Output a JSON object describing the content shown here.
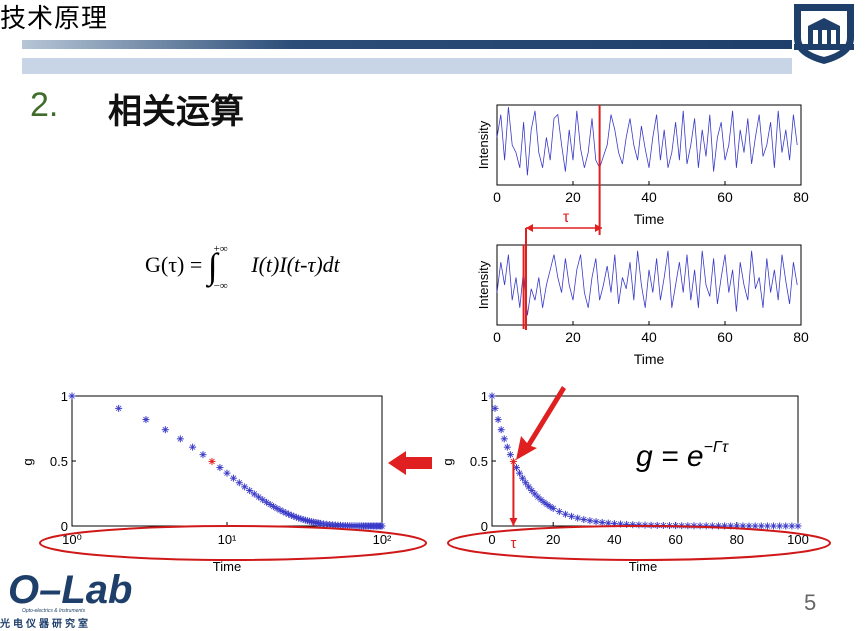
{
  "header": {
    "title": "技术原理"
  },
  "section": {
    "number": "2.",
    "title": "相关运算"
  },
  "formula": {
    "text": "G(τ) = ∫₋∞⁺∞ I(t)I(t-τ)dt",
    "lhs": "G(τ) =",
    "integral": "∫",
    "upper": "+∞",
    "lower": "−∞",
    "integrand": "I(t)I(t-τ)dt"
  },
  "slide": {
    "page_number": "5"
  },
  "logo": {
    "main": "O–Lab",
    "sub": "Opto-electrics & Instruments",
    "chinese": "光电仪器研究室"
  },
  "annotations": {
    "tau_label": "τ",
    "decay_formula": "g = e^(−Γτ)"
  },
  "colors": {
    "accent": "#e02020",
    "series": "#3a3ac8",
    "header_dark": "#1f3f6b",
    "section_num": "#3f6c2a"
  },
  "chart_data": [
    {
      "type": "line",
      "xlabel": "Time",
      "ylabel": "Intensity",
      "xlim": [
        0,
        80
      ],
      "xticks": [
        "0",
        "20",
        "40",
        "60",
        "80"
      ],
      "marker_x": 27,
      "series": [
        {
          "values": [
            0.6,
            0.9,
            0.3,
            1.0,
            0.5,
            0.4,
            0.2,
            0.8,
            0.1,
            0.7,
            0.95,
            0.4,
            0.2,
            0.6,
            0.3,
            0.85,
            0.9,
            0.5,
            0.15,
            0.7,
            0.3,
            0.95,
            0.45,
            0.2,
            0.4,
            0.85,
            0.3,
            0.2,
            0.35,
            0.5,
            0.9,
            0.7,
            0.4,
            0.25,
            0.6,
            0.85,
            0.5,
            0.3,
            0.75,
            0.45,
            0.2,
            0.6,
            0.9,
            0.3,
            0.7,
            0.2,
            0.4,
            0.8,
            0.3,
            0.95,
            0.25,
            0.5,
            0.85,
            0.2,
            0.7,
            0.35,
            0.9,
            0.15,
            0.6,
            0.8,
            0.3,
            0.5,
            0.95,
            0.2,
            0.7,
            0.4,
            0.85,
            0.25,
            0.6,
            0.9,
            0.35,
            0.5,
            0.8,
            0.2,
            0.95,
            0.4,
            0.7,
            0.3,
            0.9,
            0.5
          ]
        }
      ]
    },
    {
      "type": "line",
      "xlabel": "Time",
      "ylabel": "Intensity",
      "xlim": [
        0,
        80
      ],
      "xticks": [
        "0",
        "20",
        "40",
        "60",
        "80"
      ],
      "marker_x": 7,
      "series": [
        {
          "values": [
            0.4,
            0.8,
            0.5,
            0.9,
            0.3,
            0.6,
            0.2,
            0.7,
            0.1,
            0.45,
            0.3,
            0.6,
            0.2,
            0.5,
            0.7,
            0.9,
            0.6,
            0.4,
            0.85,
            0.5,
            0.3,
            0.7,
            0.9,
            0.4,
            0.2,
            0.6,
            0.85,
            0.3,
            0.5,
            0.75,
            0.4,
            0.9,
            0.25,
            0.6,
            0.45,
            0.8,
            0.3,
            0.95,
            0.5,
            0.2,
            0.7,
            0.4,
            0.85,
            0.3,
            0.6,
            0.95,
            0.2,
            0.5,
            0.8,
            0.4,
            0.9,
            0.3,
            0.7,
            0.2,
            0.95,
            0.5,
            0.35,
            0.85,
            0.25,
            0.6,
            0.9,
            0.4,
            0.7,
            0.15,
            0.8,
            0.5,
            0.3,
            0.95,
            0.45,
            0.6,
            0.2,
            0.85,
            0.4,
            0.7,
            0.3,
            0.9,
            0.55,
            0.25,
            0.8,
            0.5
          ]
        }
      ]
    },
    {
      "type": "scatter",
      "xscale": "log",
      "xlabel": "Time",
      "ylabel": "g",
      "xlim": [
        1,
        100
      ],
      "ylim": [
        0,
        1
      ],
      "xticks": [
        "10⁰",
        "10¹",
        "10²"
      ],
      "yticks": [
        "0",
        "0.5",
        "1"
      ],
      "highlight_x": 8,
      "series": [
        {
          "x": [
            1,
            2,
            3,
            4,
            5,
            6,
            7,
            8,
            9,
            10,
            11,
            12,
            13,
            14,
            15,
            16,
            17,
            18,
            19,
            20,
            21,
            22,
            23,
            24,
            25,
            26,
            27,
            28,
            29,
            30,
            31,
            32,
            33,
            34,
            35,
            36,
            37,
            38,
            39,
            40,
            42,
            44,
            46,
            48,
            50,
            52,
            54,
            56,
            58,
            60,
            62,
            64,
            66,
            68,
            70,
            72,
            74,
            76,
            78,
            80,
            82,
            84,
            86,
            88,
            90,
            92,
            94,
            96,
            98,
            100
          ]
        }
      ],
      "decay_rate": 0.1
    },
    {
      "type": "scatter",
      "xlabel": "Time",
      "ylabel": "g",
      "xlim": [
        0,
        100
      ],
      "ylim": [
        0,
        1
      ],
      "xticks": [
        "0",
        "20",
        "40",
        "60",
        "80",
        "100"
      ],
      "yticks": [
        "0",
        "0.5",
        "1"
      ],
      "highlight_x": 7,
      "series": [
        {
          "x": [
            0,
            1,
            2,
            3,
            4,
            5,
            6,
            7,
            8,
            9,
            10,
            11,
            12,
            13,
            14,
            15,
            16,
            17,
            18,
            19,
            20,
            22,
            24,
            26,
            28,
            30,
            32,
            34,
            36,
            38,
            40,
            42,
            44,
            46,
            48,
            50,
            52,
            54,
            56,
            58,
            60,
            62,
            64,
            66,
            68,
            70,
            72,
            74,
            76,
            78,
            80,
            82,
            84,
            86,
            88,
            90,
            92,
            94,
            96,
            98,
            100
          ]
        }
      ],
      "decay_rate": 0.1
    }
  ]
}
